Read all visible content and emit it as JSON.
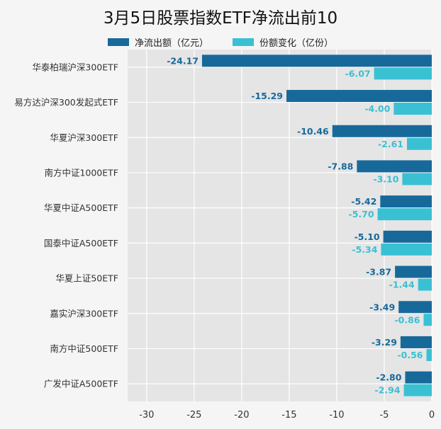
{
  "chart_data": {
    "type": "bar",
    "orientation": "horizontal",
    "title": "3月5日股票指数ETF净流出前10",
    "categories": [
      "华泰柏瑞沪深300ETF",
      "易方达沪深300发起式ETF",
      "华夏沪深300ETF",
      "南方中证1000ETF",
      "华夏中证A500ETF",
      "国泰中证A500ETF",
      "华夏上证50ETF",
      "嘉实沪深300ETF",
      "南方中证500ETF",
      "广发中证A500ETF"
    ],
    "series": [
      {
        "name": "净流出额（亿元）",
        "color": "#17699a",
        "values": [
          -24.17,
          -15.29,
          -10.46,
          -7.88,
          -5.42,
          -5.1,
          -3.87,
          -3.49,
          -3.29,
          -2.8
        ],
        "labels": [
          "-24.17",
          "-15.29",
          "-10.46",
          "-7.88",
          "-5.42",
          "-5.10",
          "-3.87",
          "-3.49",
          "-3.29",
          "-2.80"
        ]
      },
      {
        "name": "份额变化（亿份）",
        "color": "#3ac0d3",
        "values": [
          -6.07,
          -4.0,
          -2.61,
          -3.1,
          -5.7,
          -5.34,
          -1.44,
          -0.86,
          -0.56,
          -2.94
        ],
        "labels": [
          "-6.07",
          "-4.00",
          "-2.61",
          "-3.10",
          "-5.70",
          "-5.34",
          "-1.44",
          "-0.86",
          "-0.56",
          "-2.94"
        ]
      }
    ],
    "xlim": [
      -32,
      0
    ],
    "xticks": [
      -30,
      -25,
      -20,
      -15,
      -10,
      -5,
      0
    ],
    "grid": true,
    "legend_position": "top"
  }
}
